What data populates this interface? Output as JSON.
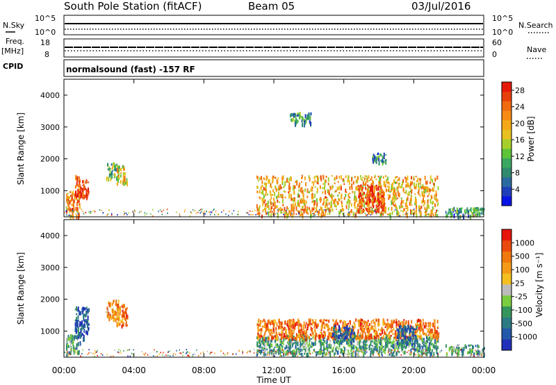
{
  "header": {
    "station": "South Pole Station (fitACF)",
    "beam": "Beam 05",
    "date": "03/Jul/2016"
  },
  "strips": {
    "nsky_label": "N.Sky",
    "nsky_ticks": [
      "10^5",
      "10^0"
    ],
    "nsearch_label": "N.Search",
    "nsearch_ticks": [
      "10^5",
      "10^0"
    ],
    "freq_label": "Freq.",
    "freq_unit": "[MHz]",
    "freq_ticks": [
      "18",
      "8"
    ],
    "nave_label": "Nave",
    "nave_ticks": [
      "60",
      "0"
    ],
    "cpid_label": "CPID",
    "cpid_text": "normalsound (fast) -157 RF"
  },
  "chart_data": [
    {
      "type": "heatmap",
      "panel": "power",
      "ylabel": "Slant Range [km]",
      "ylim": [
        180,
        4500
      ],
      "y_ticks": [
        "1000",
        "2000",
        "3000",
        "4000"
      ],
      "y_tick_values": [
        1000,
        2000,
        3000,
        4000
      ],
      "xlabel": "Time UT",
      "x_ticks": [
        "00:00",
        "04:00",
        "08:00",
        "12:00",
        "16:00",
        "20:00",
        "00:00"
      ],
      "x_tick_hours": [
        0,
        4,
        8,
        12,
        16,
        20,
        24
      ],
      "xlim_hours": [
        0,
        24
      ],
      "colorbar": {
        "label": "Power [dB]",
        "ticks": [
          "4",
          "8",
          "12",
          "16",
          "20",
          "24",
          "28"
        ],
        "tick_values": [
          4,
          8,
          12,
          16,
          20,
          24,
          28
        ],
        "range": [
          0,
          30
        ],
        "colors": [
          "#0a14e6",
          "#1f3fb8",
          "#2a6aa0",
          "#2f8a6e",
          "#3aa860",
          "#5ec43a",
          "#a6cf2a",
          "#e8c020",
          "#f4a818",
          "#f68a14",
          "#f06a10",
          "#e8400c",
          "#e61a0a"
        ]
      },
      "echo_regions": [
        {
          "t": [
            0.1,
            0.9
          ],
          "r": [
            200,
            1000
          ],
          "level": 22
        },
        {
          "t": [
            0.6,
            1.4
          ],
          "r": [
            800,
            1500
          ],
          "level": 27
        },
        {
          "t": [
            2.4,
            3.1
          ],
          "r": [
            1400,
            1900
          ],
          "level": 12
        },
        {
          "t": [
            3.0,
            3.6
          ],
          "r": [
            1200,
            1800
          ],
          "level": 18
        },
        {
          "t": [
            11.0,
            21.4
          ],
          "r": [
            250,
            1500
          ],
          "level": 20
        },
        {
          "t": [
            16.8,
            18.3
          ],
          "r": [
            350,
            1200
          ],
          "level": 27
        },
        {
          "t": [
            12.9,
            14.1
          ],
          "r": [
            3100,
            3500
          ],
          "level": 8
        },
        {
          "t": [
            17.6,
            18.4
          ],
          "r": [
            1900,
            2200
          ],
          "level": 8
        },
        {
          "t": [
            21.8,
            24.0
          ],
          "r": [
            200,
            500
          ],
          "level": 8
        }
      ]
    },
    {
      "type": "heatmap",
      "panel": "velocity",
      "ylabel": "Slant Range [km]",
      "ylim": [
        180,
        4500
      ],
      "y_ticks": [
        "1000",
        "2000",
        "3000",
        "4000"
      ],
      "y_tick_values": [
        1000,
        2000,
        3000,
        4000
      ],
      "xlabel": "Time UT",
      "x_ticks": [
        "00:00",
        "04:00",
        "08:00",
        "12:00",
        "16:00",
        "20:00",
        "00:00"
      ],
      "x_tick_hours": [
        0,
        4,
        8,
        12,
        16,
        20,
        24
      ],
      "xlim_hours": [
        0,
        24
      ],
      "colorbar": {
        "label": "Velocity [m s⁻¹]",
        "ticks": [
          "1000",
          "500",
          "100",
          "25",
          "-25",
          "-100",
          "-500",
          "-1000"
        ],
        "colors": [
          "#2030b8",
          "#2458a8",
          "#2c7a84",
          "#34955c",
          "#7acc40",
          "#bcbcbc",
          "#f4c020",
          "#f49a18",
          "#f0780e",
          "#ea4a0c",
          "#e6140a"
        ]
      },
      "echo_regions": [
        {
          "t": [
            0.1,
            0.9
          ],
          "r": [
            300,
            900
          ],
          "level": 3
        },
        {
          "t": [
            0.6,
            1.4
          ],
          "r": [
            800,
            1800
          ],
          "level": 1
        },
        {
          "t": [
            2.4,
            3.1
          ],
          "r": [
            1400,
            2000
          ],
          "level": 7
        },
        {
          "t": [
            3.0,
            3.6
          ],
          "r": [
            1200,
            1900
          ],
          "level": 8
        },
        {
          "t": [
            11.0,
            21.4
          ],
          "r": [
            300,
            900
          ],
          "level": 3
        },
        {
          "t": [
            11.0,
            21.4
          ],
          "r": [
            800,
            1400
          ],
          "level": 8
        },
        {
          "t": [
            15.3,
            16.6
          ],
          "r": [
            700,
            1200
          ],
          "level": 1
        },
        {
          "t": [
            19.0,
            20.2
          ],
          "r": [
            600,
            1200
          ],
          "level": 1
        },
        {
          "t": [
            21.8,
            24.0
          ],
          "r": [
            300,
            600
          ],
          "level": 3
        }
      ]
    }
  ]
}
